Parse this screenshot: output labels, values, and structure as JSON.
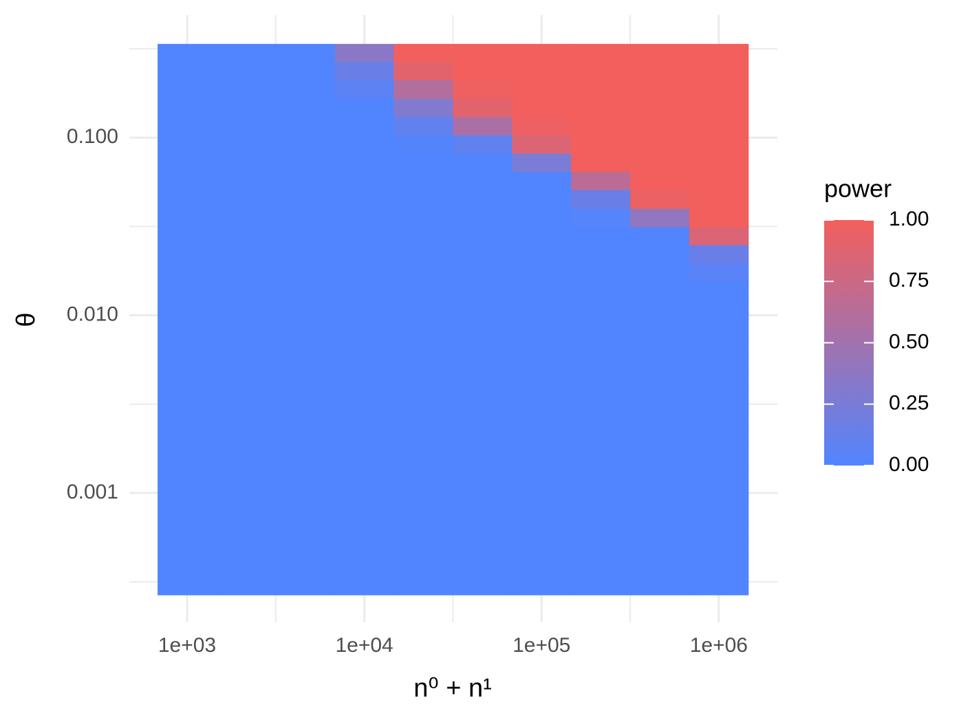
{
  "chart_data": {
    "type": "heatmap",
    "x_label": "n⁰ + n¹",
    "y_label": "θ",
    "legend_title": "power",
    "log_x": true,
    "log_y": true,
    "grid": true,
    "x": [
      1000,
      2154,
      4642,
      10000,
      21544,
      46416,
      100000,
      215443,
      464159,
      1000000
    ],
    "y": [
      0.3,
      0.238,
      0.187,
      0.147,
      0.116,
      0.0916,
      0.072,
      0.057,
      0.045,
      0.035,
      0.028,
      0.022,
      0.0174,
      0.0137,
      0.0108,
      0.0085,
      0.0067,
      0.0053,
      0.0042,
      0.0033,
      0.0026,
      0.00204,
      0.00161,
      0.00127,
      0.001,
      0.00079,
      0.00062,
      0.00049,
      0.00038,
      0.0003
    ],
    "z": [
      [
        0,
        0,
        0,
        0.35,
        1,
        1,
        1,
        1,
        1,
        1
      ],
      [
        0,
        0,
        0,
        0.15,
        0.9,
        1,
        1,
        1,
        1,
        1
      ],
      [
        0,
        0,
        0,
        0.07,
        0.6,
        0.97,
        1,
        1,
        1,
        1
      ],
      [
        0,
        0,
        0,
        0,
        0.3,
        0.9,
        1,
        1,
        1,
        1
      ],
      [
        0,
        0,
        0,
        0,
        0.1,
        0.55,
        0.97,
        1,
        1,
        1
      ],
      [
        0,
        0,
        0,
        0,
        0.02,
        0.1,
        0.85,
        1,
        1,
        1
      ],
      [
        0,
        0,
        0,
        0,
        0,
        0,
        0.25,
        1,
        1,
        1
      ],
      [
        0,
        0,
        0,
        0,
        0,
        0,
        0,
        0.65,
        1,
        1
      ],
      [
        0,
        0,
        0,
        0,
        0,
        0,
        0,
        0.15,
        0.95,
        1
      ],
      [
        0,
        0,
        0,
        0,
        0,
        0,
        0,
        0.03,
        0.4,
        1
      ],
      [
        0,
        0,
        0,
        0,
        0,
        0,
        0,
        0,
        0,
        0.85
      ],
      [
        0,
        0,
        0,
        0,
        0,
        0,
        0,
        0,
        0,
        0.15
      ],
      [
        0,
        0,
        0,
        0,
        0,
        0,
        0,
        0,
        0,
        0.05
      ],
      [
        0,
        0,
        0,
        0,
        0,
        0,
        0,
        0,
        0,
        0
      ],
      [
        0,
        0,
        0,
        0,
        0,
        0,
        0,
        0,
        0,
        0
      ],
      [
        0,
        0,
        0,
        0,
        0,
        0,
        0,
        0,
        0,
        0
      ],
      [
        0,
        0,
        0,
        0,
        0,
        0,
        0,
        0,
        0,
        0
      ],
      [
        0,
        0,
        0,
        0,
        0,
        0,
        0,
        0,
        0,
        0
      ],
      [
        0,
        0,
        0,
        0,
        0,
        0,
        0,
        0,
        0,
        0
      ],
      [
        0,
        0,
        0,
        0,
        0,
        0,
        0,
        0,
        0,
        0
      ],
      [
        0,
        0,
        0,
        0,
        0,
        0,
        0,
        0,
        0,
        0
      ],
      [
        0,
        0,
        0,
        0,
        0,
        0,
        0,
        0,
        0,
        0
      ],
      [
        0,
        0,
        0,
        0,
        0,
        0,
        0,
        0,
        0,
        0
      ],
      [
        0,
        0,
        0,
        0,
        0,
        0,
        0,
        0,
        0,
        0
      ],
      [
        0,
        0,
        0,
        0,
        0,
        0,
        0,
        0,
        0,
        0
      ],
      [
        0,
        0,
        0,
        0,
        0,
        0,
        0,
        0,
        0,
        0
      ],
      [
        0,
        0,
        0,
        0,
        0,
        0,
        0,
        0,
        0,
        0
      ],
      [
        0,
        0,
        0,
        0,
        0,
        0,
        0,
        0,
        0,
        0
      ],
      [
        0,
        0,
        0,
        0,
        0,
        0,
        0,
        0,
        0,
        0
      ],
      [
        0,
        0,
        0,
        0,
        0,
        0,
        0,
        0,
        0,
        0
      ]
    ],
    "xlim": [
      472,
      2140000
    ],
    "ylim": [
      0.000187,
      0.489
    ],
    "xticks": [
      {
        "value": 1000,
        "label": "1e+03"
      },
      {
        "value": 10000,
        "label": "1e+04"
      },
      {
        "value": 100000,
        "label": "1e+05"
      },
      {
        "value": 1000000,
        "label": "1e+06"
      }
    ],
    "xminorticks": [
      3162,
      31623,
      316228
    ],
    "yticks": [
      {
        "value": 0.001,
        "label": "0.001"
      },
      {
        "value": 0.01,
        "label": "0.010"
      },
      {
        "value": 0.1,
        "label": "0.100"
      }
    ],
    "yminorticks": [
      0.000316,
      0.00316,
      0.0316,
      0.316
    ],
    "color_low": "#5185ff",
    "color_high": "#f35f5c",
    "colorlim": [
      0,
      1
    ],
    "colorticks": [
      {
        "value": 0,
        "label": "0.00"
      },
      {
        "value": 0.25,
        "label": "0.25"
      },
      {
        "value": 0.5,
        "label": "0.50"
      },
      {
        "value": 0.75,
        "label": "0.75"
      },
      {
        "value": 1,
        "label": "1.00"
      }
    ]
  }
}
